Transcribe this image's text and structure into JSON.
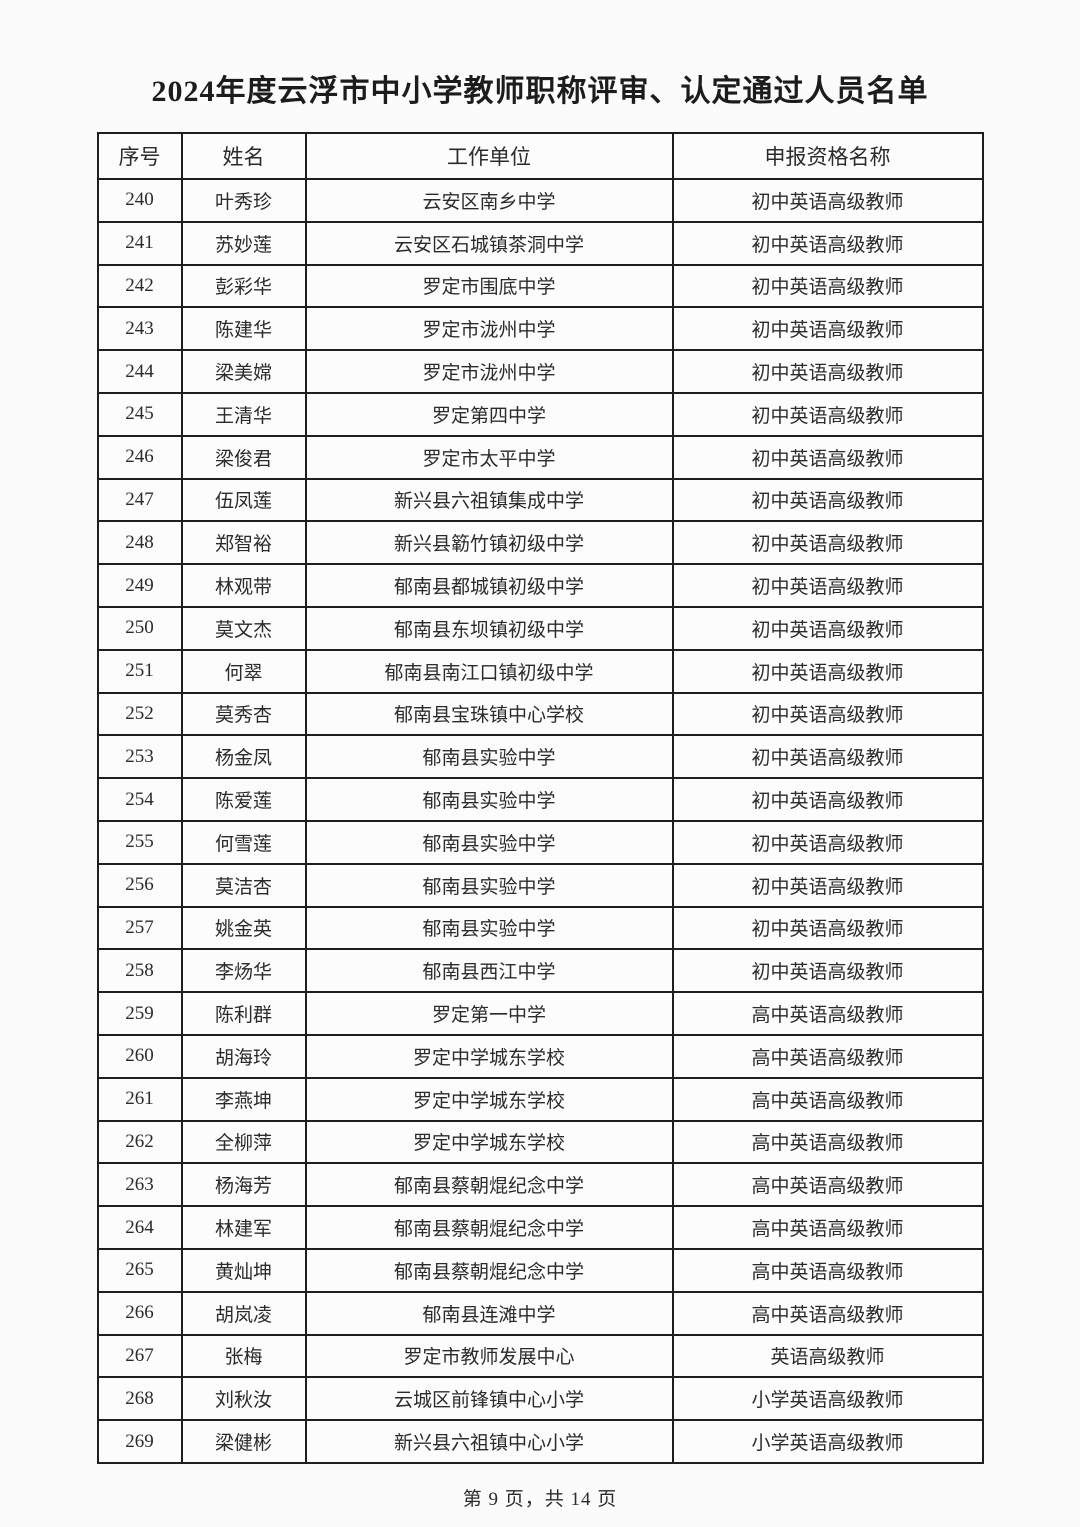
{
  "title": "2024年度云浮市中小学教师职称评审、认定通过人员名单",
  "table": {
    "headers": [
      "序号",
      "姓名",
      "工作单位",
      "申报资格名称"
    ],
    "rows": [
      [
        "240",
        "叶秀珍",
        "云安区南乡中学",
        "初中英语高级教师"
      ],
      [
        "241",
        "苏妙莲",
        "云安区石城镇茶洞中学",
        "初中英语高级教师"
      ],
      [
        "242",
        "彭彩华",
        "罗定市围底中学",
        "初中英语高级教师"
      ],
      [
        "243",
        "陈建华",
        "罗定市泷州中学",
        "初中英语高级教师"
      ],
      [
        "244",
        "梁美嫦",
        "罗定市泷州中学",
        "初中英语高级教师"
      ],
      [
        "245",
        "王清华",
        "罗定第四中学",
        "初中英语高级教师"
      ],
      [
        "246",
        "梁俊君",
        "罗定市太平中学",
        "初中英语高级教师"
      ],
      [
        "247",
        "伍凤莲",
        "新兴县六祖镇集成中学",
        "初中英语高级教师"
      ],
      [
        "248",
        "郑智裕",
        "新兴县簕竹镇初级中学",
        "初中英语高级教师"
      ],
      [
        "249",
        "林观带",
        "郁南县都城镇初级中学",
        "初中英语高级教师"
      ],
      [
        "250",
        "莫文杰",
        "郁南县东坝镇初级中学",
        "初中英语高级教师"
      ],
      [
        "251",
        "何翠",
        "郁南县南江口镇初级中学",
        "初中英语高级教师"
      ],
      [
        "252",
        "莫秀杏",
        "郁南县宝珠镇中心学校",
        "初中英语高级教师"
      ],
      [
        "253",
        "杨金凤",
        "郁南县实验中学",
        "初中英语高级教师"
      ],
      [
        "254",
        "陈爱莲",
        "郁南县实验中学",
        "初中英语高级教师"
      ],
      [
        "255",
        "何雪莲",
        "郁南县实验中学",
        "初中英语高级教师"
      ],
      [
        "256",
        "莫洁杏",
        "郁南县实验中学",
        "初中英语高级教师"
      ],
      [
        "257",
        "姚金英",
        "郁南县实验中学",
        "初中英语高级教师"
      ],
      [
        "258",
        "李炀华",
        "郁南县西江中学",
        "初中英语高级教师"
      ],
      [
        "259",
        "陈利群",
        "罗定第一中学",
        "高中英语高级教师"
      ],
      [
        "260",
        "胡海玲",
        "罗定中学城东学校",
        "高中英语高级教师"
      ],
      [
        "261",
        "李燕坤",
        "罗定中学城东学校",
        "高中英语高级教师"
      ],
      [
        "262",
        "全柳萍",
        "罗定中学城东学校",
        "高中英语高级教师"
      ],
      [
        "263",
        "杨海芳",
        "郁南县蔡朝焜纪念中学",
        "高中英语高级教师"
      ],
      [
        "264",
        "林建军",
        "郁南县蔡朝焜纪念中学",
        "高中英语高级教师"
      ],
      [
        "265",
        "黄灿坤",
        "郁南县蔡朝焜纪念中学",
        "高中英语高级教师"
      ],
      [
        "266",
        "胡岚凌",
        "郁南县连滩中学",
        "高中英语高级教师"
      ],
      [
        "267",
        "张梅",
        "罗定市教师发展中心",
        "英语高级教师"
      ],
      [
        "268",
        "刘秋汝",
        "云城区前锋镇中心小学",
        "小学英语高级教师"
      ],
      [
        "269",
        "梁健彬",
        "新兴县六祖镇中心小学",
        "小学英语高级教师"
      ]
    ]
  },
  "footer": {
    "text": "第 9 页，共 14 页"
  }
}
